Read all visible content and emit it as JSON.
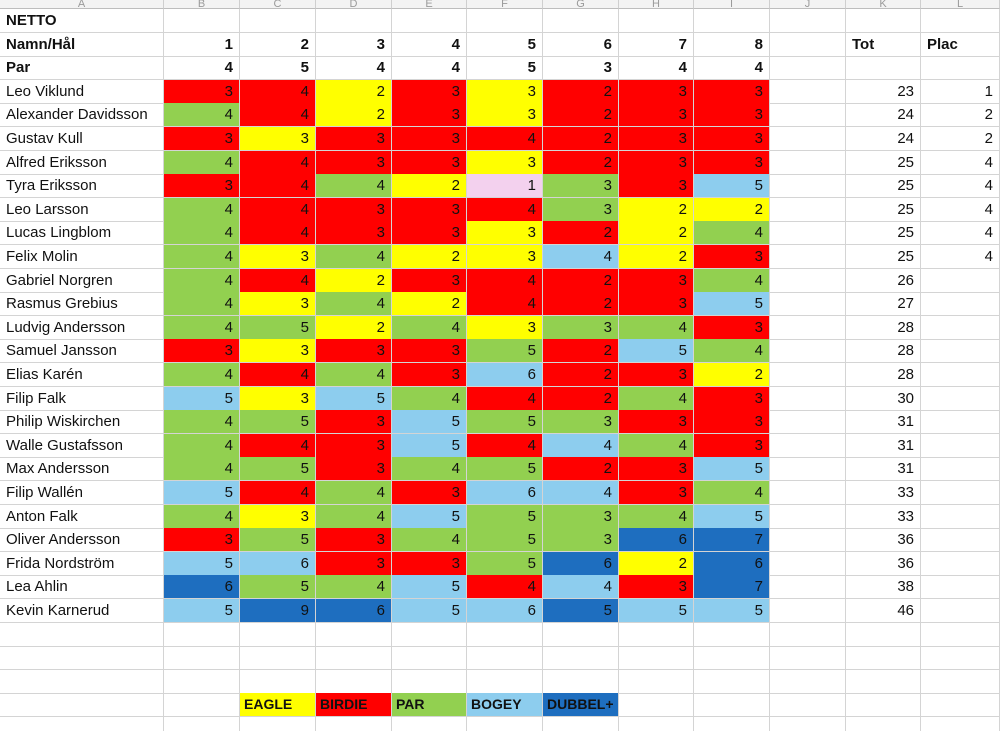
{
  "column_letters": [
    "A",
    "B",
    "C",
    "D",
    "E",
    "F",
    "G",
    "H",
    "I",
    "J",
    "K",
    "L"
  ],
  "sheet": {
    "title": "NETTO",
    "header_label": "Namn/Hål",
    "holes": [
      "1",
      "2",
      "3",
      "4",
      "5",
      "6",
      "7",
      "8"
    ],
    "par_label": "Par",
    "par": [
      "4",
      "5",
      "4",
      "4",
      "5",
      "3",
      "4",
      "4"
    ],
    "tot_label": "Tot",
    "plac_label": "Plac"
  },
  "colors": {
    "eagle": "#ffff00",
    "birdie": "#ff0000",
    "par": "#92d050",
    "bogey": "#8dcdee",
    "dubbel": "#1e6ebf",
    "hole_in_one": "#f3d1ee"
  },
  "players": [
    {
      "name": "Leo Viklund",
      "scores": [
        "3",
        "4",
        "2",
        "3",
        "3",
        "2",
        "3",
        "3"
      ],
      "tot": "23",
      "plac": "1"
    },
    {
      "name": "Alexander Davidsson",
      "scores": [
        "4",
        "4",
        "2",
        "3",
        "3",
        "2",
        "3",
        "3"
      ],
      "tot": "24",
      "plac": "2"
    },
    {
      "name": "Gustav Kull",
      "scores": [
        "3",
        "3",
        "3",
        "3",
        "4",
        "2",
        "3",
        "3"
      ],
      "tot": "24",
      "plac": "2"
    },
    {
      "name": "Alfred Eriksson",
      "scores": [
        "4",
        "4",
        "3",
        "3",
        "3",
        "2",
        "3",
        "3"
      ],
      "tot": "25",
      "plac": "4"
    },
    {
      "name": "Tyra Eriksson",
      "scores": [
        "3",
        "4",
        "4",
        "2",
        "1",
        "3",
        "3",
        "5"
      ],
      "tot": "25",
      "plac": "4"
    },
    {
      "name": "Leo Larsson",
      "scores": [
        "4",
        "4",
        "3",
        "3",
        "4",
        "3",
        "2",
        "2"
      ],
      "tot": "25",
      "plac": "4"
    },
    {
      "name": "Lucas Lingblom",
      "scores": [
        "4",
        "4",
        "3",
        "3",
        "3",
        "2",
        "2",
        "4"
      ],
      "tot": "25",
      "plac": "4"
    },
    {
      "name": "Felix Molin",
      "scores": [
        "4",
        "3",
        "4",
        "2",
        "3",
        "4",
        "2",
        "3"
      ],
      "tot": "25",
      "plac": "4"
    },
    {
      "name": "Gabriel Norgren",
      "scores": [
        "4",
        "4",
        "2",
        "3",
        "4",
        "2",
        "3",
        "4"
      ],
      "tot": "26",
      "plac": ""
    },
    {
      "name": "Rasmus Grebius",
      "scores": [
        "4",
        "3",
        "4",
        "2",
        "4",
        "2",
        "3",
        "5"
      ],
      "tot": "27",
      "plac": ""
    },
    {
      "name": "Ludvig Andersson",
      "scores": [
        "4",
        "5",
        "2",
        "4",
        "3",
        "3",
        "4",
        "3"
      ],
      "tot": "28",
      "plac": ""
    },
    {
      "name": "Samuel Jansson",
      "scores": [
        "3",
        "3",
        "3",
        "3",
        "5",
        "2",
        "5",
        "4"
      ],
      "tot": "28",
      "plac": ""
    },
    {
      "name": "Elias Karén",
      "scores": [
        "4",
        "4",
        "4",
        "3",
        "6",
        "2",
        "3",
        "2"
      ],
      "tot": "28",
      "plac": ""
    },
    {
      "name": "Filip Falk",
      "scores": [
        "5",
        "3",
        "5",
        "4",
        "4",
        "2",
        "4",
        "3"
      ],
      "tot": "30",
      "plac": ""
    },
    {
      "name": "Philip Wiskirchen",
      "scores": [
        "4",
        "5",
        "3",
        "5",
        "5",
        "3",
        "3",
        "3"
      ],
      "tot": "31",
      "plac": ""
    },
    {
      "name": "Walle Gustafsson",
      "scores": [
        "4",
        "4",
        "3",
        "5",
        "4",
        "4",
        "4",
        "3"
      ],
      "tot": "31",
      "plac": ""
    },
    {
      "name": "Max Andersson",
      "scores": [
        "4",
        "5",
        "3",
        "4",
        "5",
        "2",
        "3",
        "5"
      ],
      "tot": "31",
      "plac": ""
    },
    {
      "name": "Filip Wallén",
      "scores": [
        "5",
        "4",
        "4",
        "3",
        "6",
        "4",
        "3",
        "4"
      ],
      "tot": "33",
      "plac": ""
    },
    {
      "name": "Anton Falk",
      "scores": [
        "4",
        "3",
        "4",
        "5",
        "5",
        "3",
        "4",
        "5"
      ],
      "tot": "33",
      "plac": ""
    },
    {
      "name": "Oliver Andersson",
      "scores": [
        "3",
        "5",
        "3",
        "4",
        "5",
        "3",
        "6",
        "7"
      ],
      "tot": "36",
      "plac": ""
    },
    {
      "name": "Frida Nordström",
      "scores": [
        "5",
        "6",
        "3",
        "3",
        "5",
        "6",
        "2",
        "6"
      ],
      "tot": "36",
      "plac": ""
    },
    {
      "name": "Lea Ahlin",
      "scores": [
        "6",
        "5",
        "4",
        "5",
        "4",
        "4",
        "3",
        "7"
      ],
      "tot": "38",
      "plac": ""
    },
    {
      "name": "Kevin Karnerud",
      "scores": [
        "5",
        "9",
        "6",
        "5",
        "6",
        "5",
        "5",
        "5"
      ],
      "tot": "46",
      "plac": ""
    }
  ],
  "legend": [
    {
      "label": "EAGLE",
      "color": "#ffff00"
    },
    {
      "label": "BIRDIE",
      "color": "#ff0000"
    },
    {
      "label": "PAR",
      "color": "#92d050"
    },
    {
      "label": "BOGEY",
      "color": "#8dcdee"
    },
    {
      "label": "DUBBEL+",
      "color": "#1e6ebf"
    }
  ]
}
